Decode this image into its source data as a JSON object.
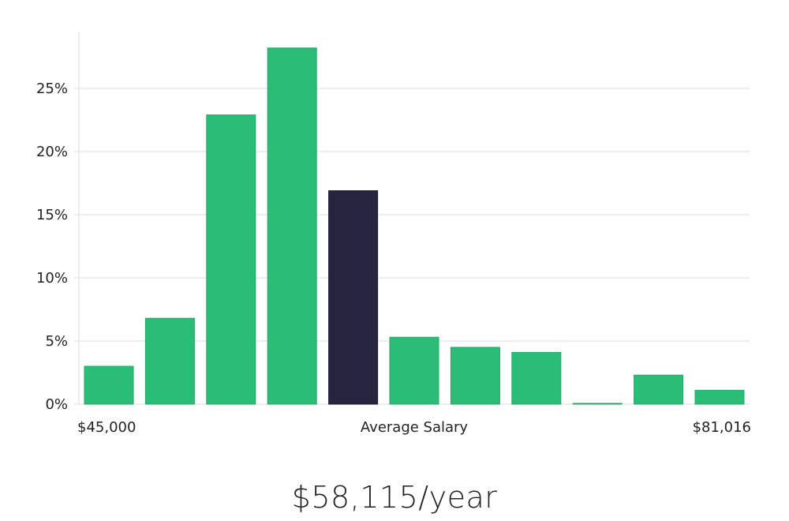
{
  "chart_data": {
    "type": "bar",
    "title": "",
    "xlabel": "Average Salary",
    "ylabel": "",
    "x_min_label": "$45,000",
    "x_max_label": "$81,016",
    "ylim": [
      0,
      29.5
    ],
    "yticks": [
      0,
      5,
      10,
      15,
      20,
      25
    ],
    "ytick_labels": [
      "0%",
      "5%",
      "10%",
      "15%",
      "20%",
      "25%"
    ],
    "grid": true,
    "values": [
      3.0,
      6.8,
      22.9,
      28.2,
      16.9,
      5.3,
      4.5,
      4.1,
      0.05,
      2.3,
      1.1
    ],
    "highlight_index": 4,
    "colors": {
      "bar": "#2abd77",
      "highlight": "#27243f",
      "grid": "#dddddd"
    }
  },
  "summary": {
    "salary": "$58,115/year"
  }
}
